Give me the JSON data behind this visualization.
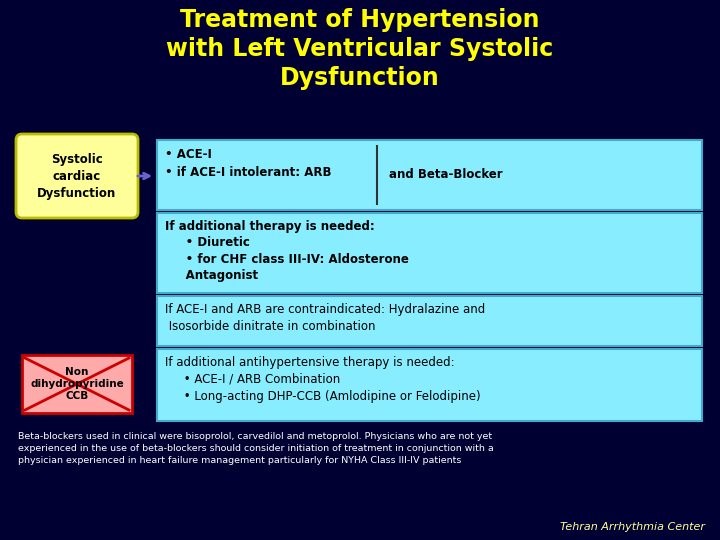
{
  "title": "Treatment of Hypertension\nwith Left Ventricular Systolic\nDysfunction",
  "bg_color": "#000033",
  "title_color": "#FFFF00",
  "title_fontsize": 17,
  "box1_label": "Systolic\ncardiac\nDysfunction",
  "box1_bg": "#FFFF99",
  "box1_border": "#CCCC00",
  "box2_bg": "#88EEFF",
  "box2_border": "#44AACC",
  "box2_text_left": "• ACE-I\n• if ACE-I intolerant: ARB",
  "box2_text_right": "and Beta-Blocker",
  "box3_text": "If additional therapy is needed:\n     • Diuretic\n     • for CHF class III-IV: Aldosterone\n     Antagonist",
  "box4_text": "If ACE-I and ARB are contraindicated: Hydralazine and\n Isosorbide dinitrate in combination",
  "box5_text": "If additional antihypertensive therapy is needed:\n     • ACE-I / ARB Combination\n     • Long-acting DHP-CCB (Amlodipine or Felodipine)",
  "nondihyd_label": "Non\ndihydropyridine\nCCB",
  "nondihyd_bg": "#FFAAAA",
  "nondihyd_border": "#CC0000",
  "footnote": "Beta-blockers used in clinical were bisoprolol, carvedilol and metoprolol. Physicians who are not yet\nexperienced in the use of beta-blockers should consider initiation of treatment in conjunction with a\nphysician experienced in heart failure management particularly for NYHA Class III-IV patients",
  "footnote_color": "#FFFFFF",
  "credit": "Tehran Arrhythmia Center",
  "credit_color": "#FFFF99",
  "text_color_dark": "#000000",
  "arrow_color": "#6666CC"
}
